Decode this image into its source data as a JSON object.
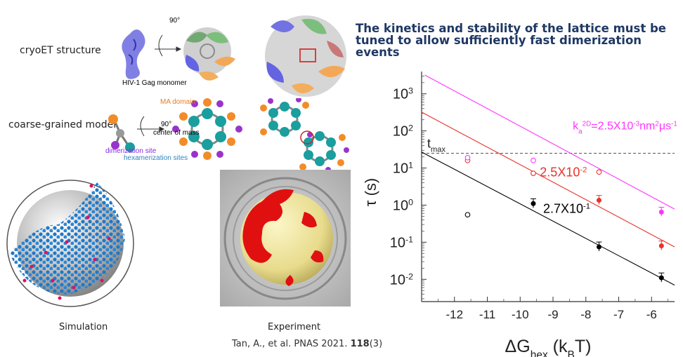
{
  "headline": {
    "line1": "The kinetics and stability of the lattice must be",
    "line2": "tuned to allow sufficiently fast dimerization events"
  },
  "left_labels": {
    "cryoet": "cryoET structure",
    "coarse": "coarse-grained model",
    "monomer": "HIV-1 Gag monomer",
    "rotation1": "90°",
    "rotation2": "90°",
    "ma_domain": "MA domain",
    "center_of_mass": "center of mass",
    "dimerization_site": "dimerization site",
    "hexamerization_sites": "hexamerization sites",
    "simulation": "Simulation",
    "experiment": "Experiment"
  },
  "citation": {
    "text": "Tan, A., et al. PNAS 2021. ",
    "volume": "118",
    "issue": "(3)"
  },
  "colors": {
    "headline": "#1f3864",
    "black_series": "#000000",
    "red_series": "#e8332a",
    "magenta_series": "#ff33ff",
    "tmax_line": "#555555",
    "ma_domain_label": "#e87d1e",
    "dimerization_label": "#8a2be2",
    "hexamerization_label": "#2e86c1",
    "teal_bead": "#1a9e9e",
    "orange_bead": "#f28c28",
    "purple_bead": "#9933cc",
    "lattice_blue": "#1f78c8",
    "lattice_red": "#e01010"
  },
  "chart_data": {
    "type": "scatter",
    "xlabel": "ΔG",
    "xlabel_sub": "hex",
    "xlabel_unit_open": "(k",
    "xlabel_unit_sub": "B",
    "xlabel_unit_close": "T)",
    "ylabel": "τ (s)",
    "xlim": [
      -13.0,
      -5.3
    ],
    "ylim_log10": [
      -2.6,
      3.6
    ],
    "yscale": "log",
    "x_ticks": [
      -12,
      -11,
      -10,
      -9,
      -8,
      -7,
      -6
    ],
    "y_ticks_exp": [
      -2,
      -1,
      0,
      1,
      2,
      3
    ],
    "tmax": {
      "label": "t",
      "label_sub": "max",
      "value": 25
    },
    "series": [
      {
        "name": "2.7X10",
        "name_exp": "-1",
        "color": "#000000",
        "filled": [
          [
            -9.6,
            1.1
          ],
          [
            -7.6,
            0.075
          ],
          [
            -5.7,
            0.011
          ]
        ],
        "open": [
          [
            -11.6,
            0.55
          ]
        ],
        "fit": [
          [
            -13.0,
            27
          ],
          [
            -5.3,
            0.007
          ]
        ]
      },
      {
        "name": "2.5X10",
        "name_exp": "-2",
        "color": "#e8332a",
        "filled": [
          [
            -7.6,
            1.35
          ],
          [
            -5.7,
            0.08
          ]
        ],
        "open": [
          [
            -11.6,
            16
          ],
          [
            -9.6,
            7.2
          ],
          [
            -7.6,
            7.8
          ]
        ],
        "fit": [
          [
            -13.0,
            320
          ],
          [
            -5.3,
            0.075
          ]
        ]
      },
      {
        "name_prefix": "k",
        "name_prefix_sub": "a",
        "name_prefix_sup": "2D",
        "name": "=2.5X10",
        "name_exp": "-3",
        "name_unit": "nm",
        "name_unit_exp": "2",
        "name_unit2": "μs",
        "name_unit2_exp": "-1",
        "color": "#ff33ff",
        "filled": [
          [
            -5.7,
            0.65
          ]
        ],
        "open": [
          [
            -11.6,
            19
          ],
          [
            -9.6,
            16
          ]
        ],
        "fit": [
          [
            -12.9,
            3200
          ],
          [
            -5.3,
            0.78
          ]
        ]
      }
    ]
  }
}
